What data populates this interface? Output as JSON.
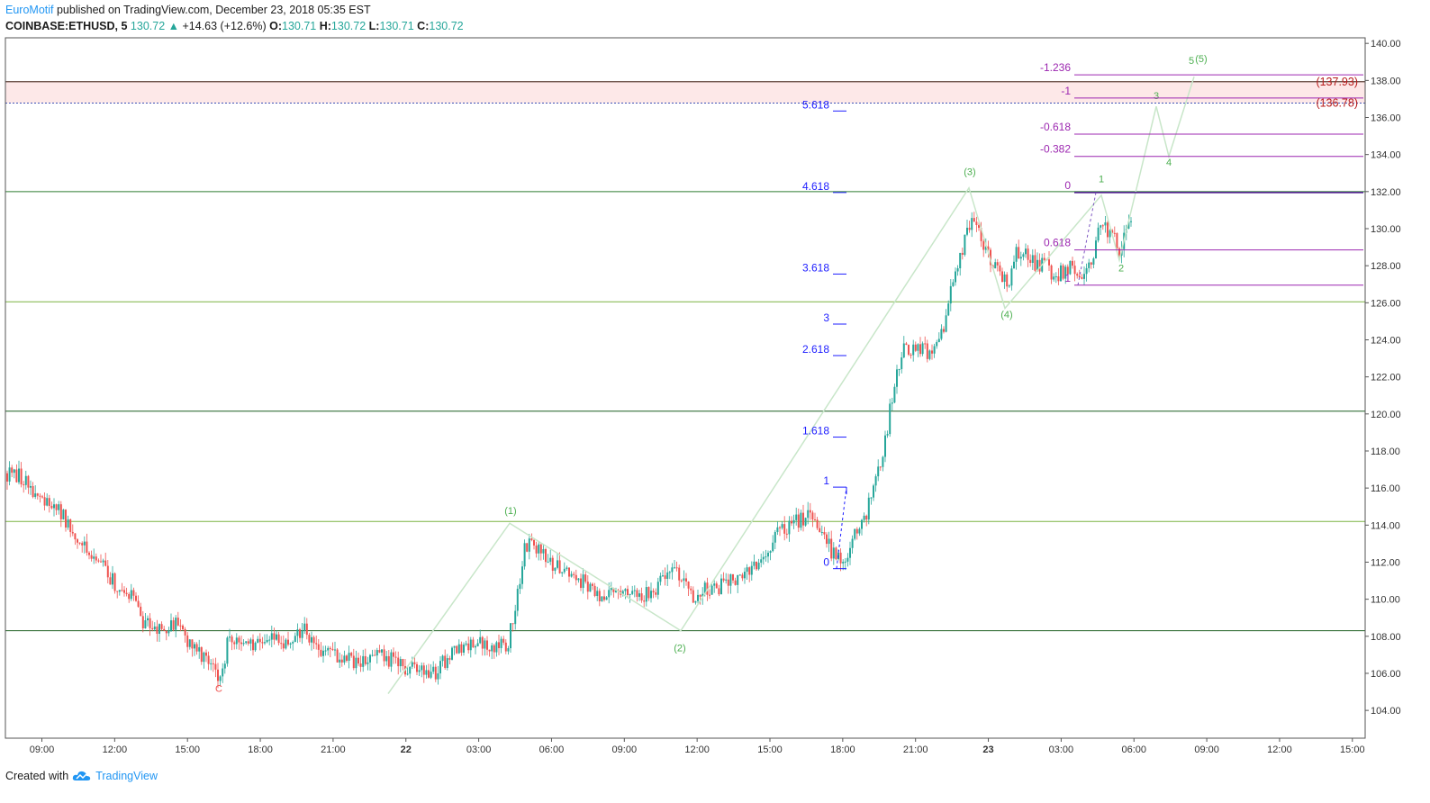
{
  "header": {
    "author": "EuroMotif",
    "published_text": "published on TradingView.com, December 23, 2018 05:35 EST",
    "symbol": "COINBASE:ETHUSD, 5",
    "last": "130.72",
    "change_arrow": "▲",
    "change": "+14.63 (+12.6%)",
    "o_label": "O:",
    "o_value": "130.71",
    "h_label": "H:",
    "h_value": "130.72",
    "l_label": "L:",
    "l_value": "130.71",
    "c_label": "C:",
    "c_value": "130.72"
  },
  "footer": {
    "created_with": "Created with",
    "brand": "TradingView",
    "logo_icon": "tradingview-cloud-icon"
  },
  "colors": {
    "up": "#26a69a",
    "down": "#ef5350",
    "wave_line": "#c8e6c9",
    "wave_label": "#4caf50",
    "fib_blue": "#1e1eff",
    "fib_purple": "#9c27b0",
    "horizontal_line": "#1b5e20",
    "zone_fill": "#fde8e8",
    "price_target": "#b71c1c"
  },
  "chart_data": {
    "type": "candlestick",
    "ylim": [
      102.5,
      140.3
    ],
    "y_ticks": [
      "140.00",
      "138.00",
      "136.00",
      "134.00",
      "132.00",
      "130.00",
      "128.00",
      "126.00",
      "124.00",
      "122.00",
      "120.00",
      "118.00",
      "116.00",
      "114.00",
      "112.00",
      "110.00",
      "108.00",
      "106.00",
      "104.00"
    ],
    "x_ticks": [
      "09:00",
      "12:00",
      "15:00",
      "18:00",
      "21:00",
      "22",
      "03:00",
      "06:00",
      "09:00",
      "12:00",
      "15:00",
      "18:00",
      "21:00",
      "23",
      "03:00",
      "06:00",
      "09:00",
      "12:00",
      "15:00"
    ],
    "x_ticks_bold": [
      "22",
      "23"
    ],
    "price_path": [
      [
        0,
        116.8
      ],
      [
        20,
        116.5
      ],
      [
        40,
        115.2
      ],
      [
        60,
        114.6
      ],
      [
        80,
        113.2
      ],
      [
        100,
        112.3
      ],
      [
        120,
        110.8
      ],
      [
        140,
        110.0
      ],
      [
        150,
        108.6
      ],
      [
        170,
        108.5
      ],
      [
        190,
        108.8
      ],
      [
        205,
        107.2
      ],
      [
        225,
        106.9
      ],
      [
        235,
        105.6
      ],
      [
        245,
        107.6
      ],
      [
        270,
        107.4
      ],
      [
        295,
        107.8
      ],
      [
        315,
        107.6
      ],
      [
        330,
        108.3
      ],
      [
        350,
        107.3
      ],
      [
        370,
        106.9
      ],
      [
        390,
        106.5
      ],
      [
        410,
        107.1
      ],
      [
        430,
        106.6
      ],
      [
        450,
        106.2
      ],
      [
        470,
        105.8
      ],
      [
        490,
        106.9
      ],
      [
        510,
        107.3
      ],
      [
        530,
        107.7
      ],
      [
        555,
        107.4
      ],
      [
        565,
        109.8
      ],
      [
        575,
        112.8
      ],
      [
        585,
        113.0
      ],
      [
        600,
        112.0
      ],
      [
        620,
        111.5
      ],
      [
        640,
        110.9
      ],
      [
        660,
        110.2
      ],
      [
        680,
        110.7
      ],
      [
        700,
        110.0
      ],
      [
        720,
        110.6
      ],
      [
        740,
        111.7
      ],
      [
        760,
        110.1
      ],
      [
        780,
        110.6
      ],
      [
        800,
        110.8
      ],
      [
        820,
        111.4
      ],
      [
        840,
        112.2
      ],
      [
        855,
        113.8
      ],
      [
        870,
        114.0
      ],
      [
        890,
        114.5
      ],
      [
        905,
        113.7
      ],
      [
        915,
        112.6
      ],
      [
        930,
        112.2
      ],
      [
        940,
        113.6
      ],
      [
        955,
        114.8
      ],
      [
        965,
        116.6
      ],
      [
        975,
        118.4
      ],
      [
        985,
        121.7
      ],
      [
        995,
        123.4
      ],
      [
        1010,
        123.6
      ],
      [
        1025,
        123.3
      ],
      [
        1040,
        124.5
      ],
      [
        1050,
        127.2
      ],
      [
        1060,
        128.7
      ],
      [
        1070,
        130.3
      ],
      [
        1078,
        129.9
      ],
      [
        1090,
        128.5
      ],
      [
        1100,
        127.7
      ],
      [
        1112,
        127.0
      ],
      [
        1120,
        128.6
      ],
      [
        1130,
        128.9
      ],
      [
        1140,
        128.1
      ],
      [
        1155,
        127.9
      ],
      [
        1165,
        127.4
      ],
      [
        1180,
        127.9
      ],
      [
        1195,
        127.5
      ],
      [
        1205,
        128.5
      ],
      [
        1215,
        130.6
      ],
      [
        1225,
        129.7
      ],
      [
        1235,
        128.9
      ],
      [
        1245,
        130.5
      ]
    ],
    "horizontal_lines": [
      126.05,
      120.15,
      114.2,
      108.3,
      132.0
    ],
    "resistance_zone": {
      "top": 137.93,
      "bottom": 136.78
    },
    "price_targets": [
      {
        "label": "(137.93)",
        "value": 137.93
      },
      {
        "label": "(136.78)",
        "value": 136.78
      }
    ],
    "wave_path": [
      [
        425,
        104.9
      ],
      [
        560,
        114.1
      ],
      [
        750,
        108.3
      ],
      [
        1070,
        132.2
      ],
      [
        1110,
        125.7
      ],
      [
        1217,
        131.8
      ],
      [
        1237,
        128.3
      ],
      [
        1278,
        136.6
      ],
      [
        1292,
        133.9
      ],
      [
        1320,
        138.2
      ]
    ],
    "wave_labels": [
      {
        "text": "C",
        "x": 237,
        "y": 105.0,
        "color": "#ef5350"
      },
      {
        "text": "(1)",
        "x": 561,
        "y": 114.6,
        "color": "#4caf50"
      },
      {
        "text": "(2)",
        "x": 749,
        "y": 107.2,
        "color": "#4caf50"
      },
      {
        "text": "(3)",
        "x": 1071,
        "y": 132.9,
        "color": "#4caf50"
      },
      {
        "text": "(4)",
        "x": 1112,
        "y": 125.2,
        "color": "#4caf50"
      },
      {
        "text": "1",
        "x": 1217,
        "y": 132.5,
        "color": "#4caf50"
      },
      {
        "text": "2",
        "x": 1239,
        "y": 127.7,
        "color": "#4caf50"
      },
      {
        "text": "3",
        "x": 1278,
        "y": 137.0,
        "color": "#4caf50"
      },
      {
        "text": "4",
        "x": 1292,
        "y": 133.4,
        "color": "#4caf50"
      },
      {
        "text": "5",
        "x": 1317,
        "y": 138.9,
        "color": "#4caf50"
      },
      {
        "text": "(5)",
        "x": 1328,
        "y": 139.0,
        "color": "#4caf50"
      }
    ],
    "fib_blue": [
      {
        "label": "0",
        "value": 111.65
      },
      {
        "label": "1",
        "value": 116.05
      },
      {
        "label": "1.618",
        "value": 118.75
      },
      {
        "label": "2.618",
        "value": 123.15
      },
      {
        "label": "3",
        "value": 124.85
      },
      {
        "label": "3.618",
        "value": 127.55
      },
      {
        "label": "4.618",
        "value": 131.95
      },
      {
        "label": "5.618",
        "value": 136.35
      }
    ],
    "fib_purple": [
      {
        "label": "-1.236",
        "value": 138.3
      },
      {
        "label": "-1",
        "value": 137.05
      },
      {
        "label": "-0.618",
        "value": 135.1
      },
      {
        "label": "-0.382",
        "value": 133.9
      },
      {
        "label": "0",
        "value": 131.95
      },
      {
        "label": "0.618",
        "value": 128.85
      },
      {
        "label": "1",
        "value": 126.95
      }
    ]
  }
}
